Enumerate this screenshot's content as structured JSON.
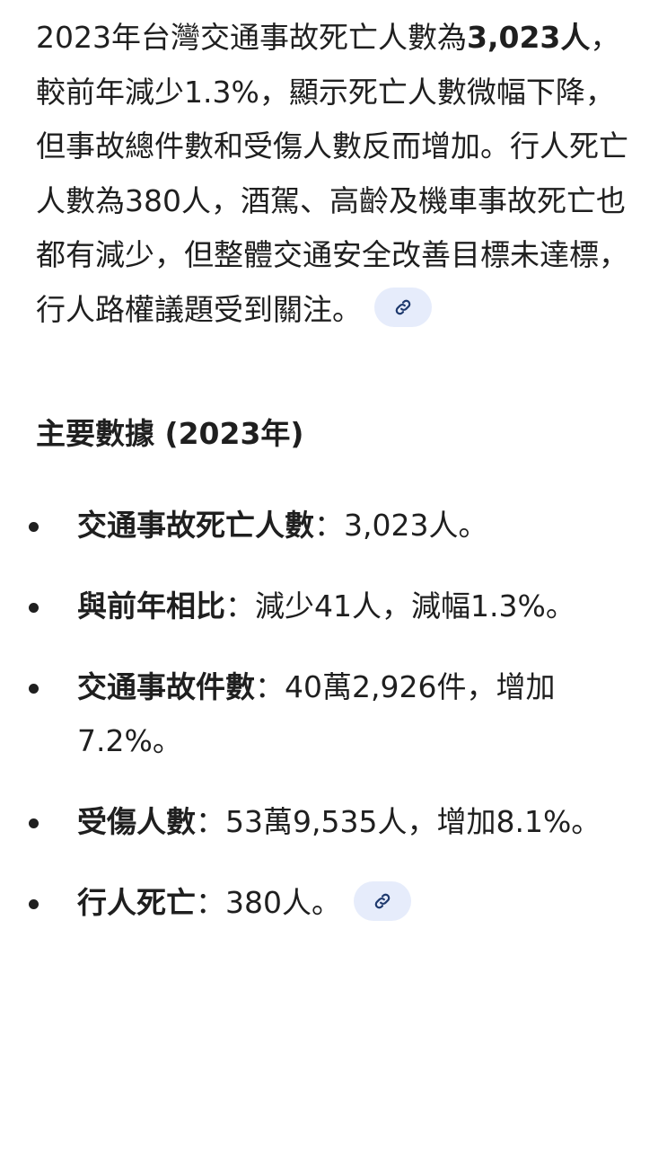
{
  "summary": {
    "p1": "2023年台灣交通事故死亡人數為",
    "bold": "3,023人",
    "p2": "，較前年減少1.3%，顯示死亡人數微幅下降，但事故總件數和受傷人數反而增加。行人死亡人數為380人，酒駕、高齡及機車事故死亡也都有減少，但整體交通安全改善目標未達標，行人路權議題受到關注。",
    "citation_icon": "link-icon"
  },
  "heading": "主要數據 (2023年)",
  "bullets": [
    {
      "label": "交通事故死亡人數",
      "text": "：3,023人。"
    },
    {
      "label": "與前年相比",
      "text": "：減少41人，減幅1.3%。"
    },
    {
      "label": "交通事故件數",
      "text": "：40萬2,926件，增加7.2%。"
    },
    {
      "label": "受傷人數",
      "text": "：53萬9,535人，增加8.1%。"
    },
    {
      "label": "行人死亡",
      "text": "：380人。",
      "citation": true
    }
  ],
  "colors": {
    "text": "#1f1f1f",
    "citation_bg": "#e6ecfb",
    "citation_icon": "#1f3a6e"
  }
}
